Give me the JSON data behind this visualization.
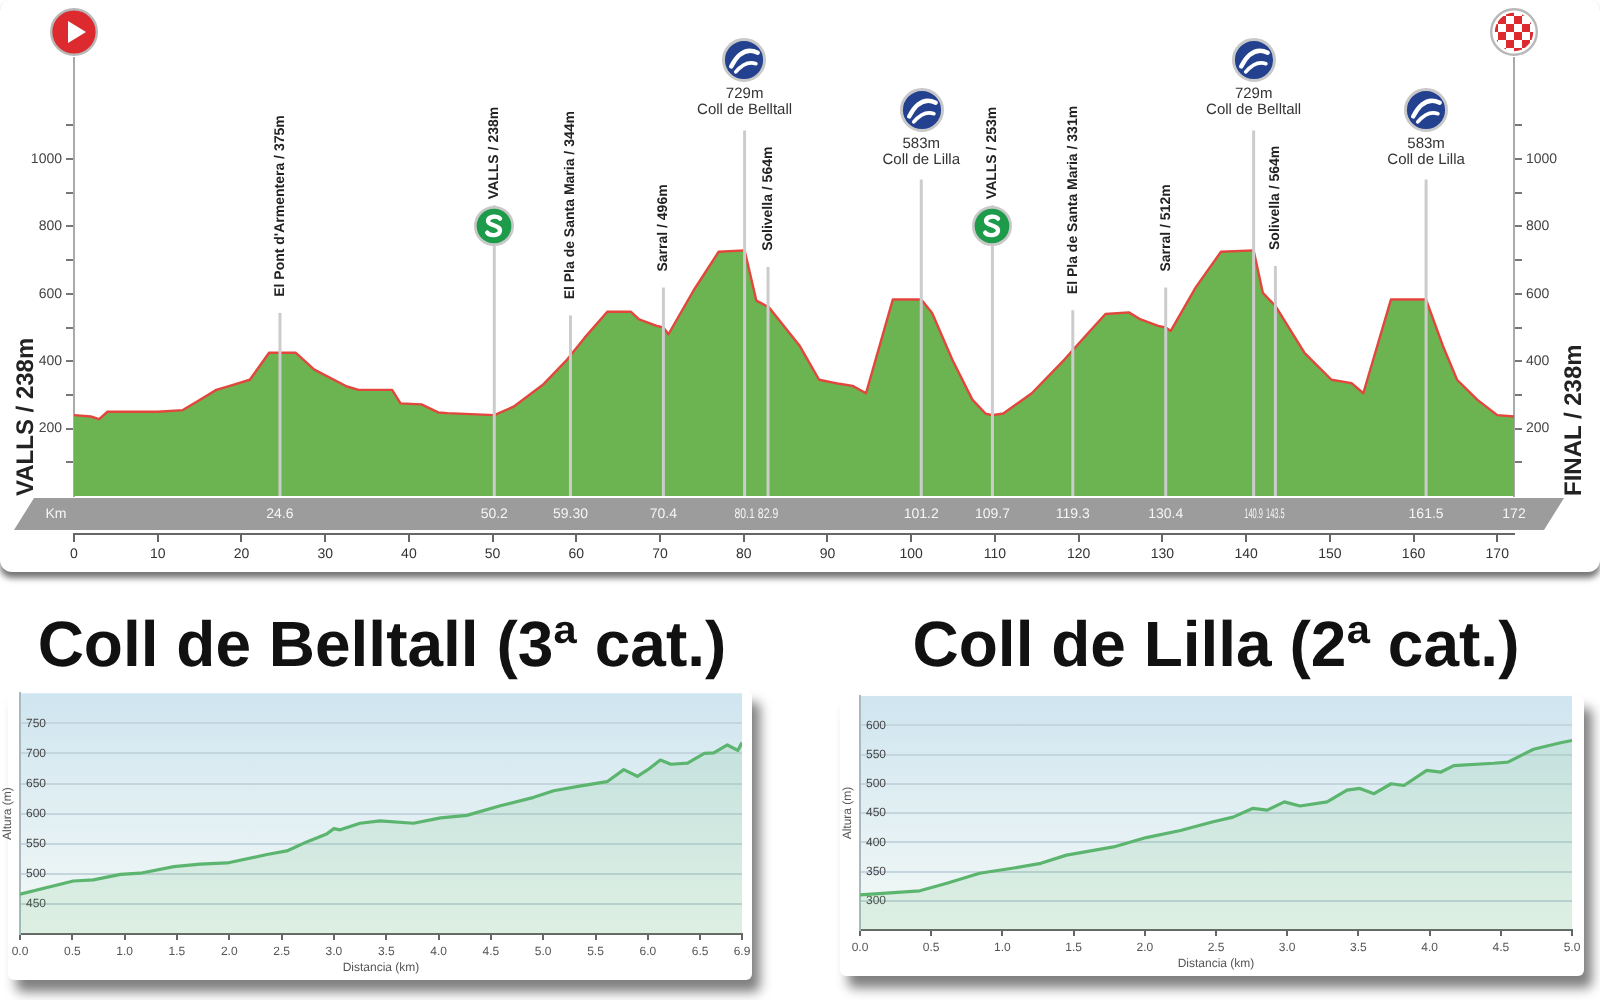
{
  "chart_data": [
    {
      "type": "area",
      "ylabel": "VALLS / 238m",
      "y2label": "FINAL / 238m",
      "x2label": "Km",
      "series": [
        {
          "color": "#6cb452",
          "x": [
            0,
            2,
            3,
            4,
            10,
            13,
            15,
            17,
            19,
            21,
            23.3,
            26.5,
            28.7,
            32.6,
            34,
            38,
            39,
            41.5,
            43.5,
            44.6,
            50.2,
            52.5,
            56,
            58.9,
            61,
            63.7,
            66.5,
            67.5,
            69.6,
            70.4,
            71,
            74,
            77,
            80.1,
            81.5,
            83,
            86.7,
            89,
            91.4,
            93,
            94.6,
            97.8,
            101.2,
            102.5,
            104.9,
            107.3,
            108.9,
            109.7,
            111,
            114.4,
            118.3,
            121,
            123.2,
            126,
            127.4,
            129.5,
            130.4,
            131,
            134,
            137,
            140.9,
            142,
            143.5,
            147,
            150.2,
            152.6,
            154,
            157.3,
            161.5,
            163.5,
            165.2,
            167.6,
            170,
            172
          ],
          "values": [
            240,
            236,
            228,
            250,
            250,
            255,
            285,
            315,
            330,
            345,
            425,
            425,
            375,
            325,
            315,
            315,
            275,
            272,
            248,
            246,
            240,
            265,
            330,
            405,
            470,
            547,
            547,
            524,
            505,
            500,
            480,
            610,
            725,
            729,
            580,
            560,
            445,
            345,
            333,
            327,
            305,
            583,
            583,
            543,
            405,
            286,
            244,
            240,
            245,
            305,
            405,
            480,
            540,
            545,
            524,
            505,
            500,
            490,
            620,
            725,
            729,
            603,
            564,
            424,
            345,
            335,
            305,
            583,
            583,
            446,
            345,
            286,
            240,
            236
          ]
        },
        {
          "type": "line",
          "color": "#e2463d",
          "x": [
            0,
            2,
            3,
            4,
            10,
            13,
            15,
            17,
            19,
            21,
            23.3,
            26.5,
            28.7,
            32.6,
            34,
            38,
            39,
            41.5,
            43.5,
            44.6,
            50.2,
            52.5,
            56,
            58.9,
            61,
            63.7,
            66.5,
            67.5,
            69.6,
            70.4,
            71,
            74,
            77,
            80.1,
            81.5,
            83,
            86.7,
            89,
            91.4,
            93,
            94.6,
            97.8,
            101.2,
            102.5,
            104.9,
            107.3,
            108.9,
            109.7,
            111,
            114.4,
            118.3,
            121,
            123.2,
            126,
            127.4,
            129.5,
            130.4,
            131,
            134,
            137,
            140.9,
            142,
            143.5,
            147,
            150.2,
            152.6,
            154,
            157.3,
            161.5,
            163.5,
            165.2,
            167.6,
            170,
            172
          ],
          "values": [
            240,
            236,
            228,
            250,
            250,
            255,
            285,
            315,
            330,
            345,
            425,
            425,
            375,
            325,
            315,
            315,
            275,
            272,
            248,
            246,
            240,
            265,
            330,
            405,
            470,
            547,
            547,
            524,
            505,
            500,
            480,
            610,
            725,
            729,
            580,
            560,
            445,
            345,
            333,
            327,
            305,
            583,
            583,
            543,
            405,
            286,
            244,
            240,
            245,
            305,
            405,
            480,
            540,
            545,
            524,
            505,
            500,
            490,
            620,
            725,
            729,
            603,
            564,
            424,
            345,
            335,
            305,
            583,
            583,
            446,
            345,
            286,
            240,
            236
          ]
        }
      ],
      "xlim": [
        0,
        172
      ],
      "xticks": [
        0,
        10,
        20,
        30,
        40,
        50,
        60,
        70,
        80,
        90,
        100,
        110,
        120,
        130,
        140,
        150,
        160,
        170
      ],
      "x2lim": [
        0,
        172
      ],
      "x2ticks": [
        24.6,
        50.2,
        {
          "value": 59.3,
          "label": "59.30"
        },
        70.4,
        80.1,
        82.9,
        101.2,
        109.7,
        119.3,
        130.4,
        140.9,
        143.5,
        161.5,
        172
      ],
      "ylim": [
        0,
        1300
      ],
      "yticks": [
        {
          "value": 100,
          "label": null
        },
        200,
        {
          "value": 300,
          "label": null
        },
        400,
        {
          "value": 500,
          "label": null
        },
        600,
        {
          "value": 700,
          "label": null
        },
        800,
        {
          "value": 900,
          "label": null
        },
        1000,
        {
          "value": 1100,
          "label": null
        }
      ],
      "y2lim": [
        0,
        1300
      ],
      "y2ticks": [
        {
          "value": 100,
          "label": null
        },
        200,
        {
          "value": 300,
          "label": null
        },
        400,
        {
          "value": 500,
          "label": null
        },
        600,
        {
          "value": 700,
          "label": null
        },
        800,
        {
          "value": 900,
          "label": null
        },
        1000,
        {
          "value": 1100,
          "label": null
        }
      ],
      "ref_lines": [
        {
          "axis": "x",
          "value": 24.6,
          "label": "El Pont d'Armentera / 375m",
          "color": "#cccccc"
        },
        {
          "axis": "x",
          "value": 50.2,
          "label": "VALLS / 238m",
          "color": "#cccccc"
        },
        {
          "axis": "x",
          "value": 59.3,
          "label": "El Pla de Santa Maria / 344m",
          "color": "#cccccc"
        },
        {
          "axis": "x",
          "value": 70.4,
          "label": "Sarral / 496m",
          "color": "#cccccc"
        },
        {
          "axis": "x",
          "value": 80.1,
          "label": "729m\nColl de Belltall",
          "color": "#cccccc"
        },
        {
          "axis": "x",
          "value": 82.9,
          "label": "Solivella / 564m",
          "color": "#cccccc"
        },
        {
          "axis": "x",
          "value": 101.2,
          "label": "583m\nColl de Lilla",
          "color": "#cccccc"
        },
        {
          "axis": "x",
          "value": 109.7,
          "label": "VALLS / 253m",
          "color": "#cccccc"
        },
        {
          "axis": "x",
          "value": 119.3,
          "label": "El Pla de Santa Maria / 331m",
          "color": "#cccccc"
        },
        {
          "axis": "x",
          "value": 130.4,
          "label": "Sarral / 512m",
          "color": "#cccccc"
        },
        {
          "axis": "x",
          "value": 140.9,
          "label": "729m\nColl de Belltall",
          "color": "#cccccc"
        },
        {
          "axis": "x",
          "value": 143.5,
          "label": "Solivella / 564m",
          "color": "#cccccc"
        },
        {
          "axis": "x",
          "value": 161.5,
          "label": "583m\nColl de Lilla",
          "color": "#cccccc"
        }
      ]
    },
    {
      "type": "area",
      "title": "Coll de Belltall (3ª cat.)",
      "xlabel": "Distancia (km)",
      "ylabel": "Altura (m)",
      "x": [
        0,
        0.51,
        0.7,
        0.96,
        1.15,
        1.47,
        1.72,
        1.98,
        2.36,
        2.55,
        2.74,
        2.93,
        3.0,
        3.06,
        3.25,
        3.44,
        3.76,
        4.02,
        4.27,
        4.59,
        4.91,
        5.1,
        5.36,
        5.61,
        5.77,
        5.9,
        6.0,
        6.12,
        6.22,
        6.38,
        6.54,
        6.63,
        6.76,
        6.86,
        6.9
      ],
      "series": [
        {
          "color": "#5cb56f",
          "values": [
            466,
            488,
            490,
            499,
            501,
            512,
            516,
            518,
            532,
            538,
            553,
            566,
            575,
            573,
            584,
            588,
            584,
            593,
            597,
            613,
            627,
            638,
            646,
            653,
            673,
            662,
            673,
            689,
            682,
            684,
            700,
            701,
            714,
            705,
            718
          ]
        }
      ],
      "xlim": [
        0,
        6.9
      ],
      "xticks": [
        {
          "value": 0,
          "label": "0.0"
        },
        0.5,
        {
          "value": 1,
          "label": "1.0"
        },
        1.5,
        {
          "value": 2,
          "label": "2.0"
        },
        2.5,
        {
          "value": 3,
          "label": "3.0"
        },
        3.5,
        {
          "value": 4,
          "label": "4.0"
        },
        4.5,
        {
          "value": 5,
          "label": "5.0"
        },
        5.5,
        {
          "value": 6,
          "label": "6.0"
        },
        6.5,
        6.9
      ],
      "ylim": [
        400,
        800
      ],
      "yticks": [
        450,
        500,
        550,
        600,
        650,
        700,
        750
      ],
      "grid": "y"
    },
    {
      "type": "area",
      "title": "Coll de Lilla (2ª cat.)",
      "xlabel": "Distancia (km)",
      "ylabel": "Altura (m)",
      "x": [
        0,
        0.42,
        0.61,
        0.84,
        1.08,
        1.27,
        1.45,
        1.59,
        1.78,
        2.01,
        2.25,
        2.48,
        2.62,
        2.76,
        2.86,
        2.98,
        3.09,
        3.28,
        3.42,
        3.51,
        3.61,
        3.73,
        3.82,
        3.98,
        4.08,
        4.17,
        4.45,
        4.55,
        4.73,
        4.92,
        5.0
      ],
      "series": [
        {
          "color": "#5cb56f",
          "values": [
            310,
            317,
            330,
            347,
            356,
            364,
            378,
            384,
            392,
            408,
            420,
            435,
            443,
            458,
            455,
            469,
            462,
            469,
            489,
            492,
            483,
            500,
            497,
            523,
            520,
            531,
            535,
            537,
            559,
            570,
            574
          ]
        }
      ],
      "xlim": [
        0,
        5
      ],
      "xticks": [
        {
          "value": 0,
          "label": "0.0"
        },
        0.5,
        {
          "value": 1,
          "label": "1.0"
        },
        1.5,
        {
          "value": 2,
          "label": "2.0"
        },
        2.5,
        {
          "value": 3,
          "label": "3.0"
        },
        3.5,
        {
          "value": 4,
          "label": "4.0"
        },
        4.5,
        {
          "value": 5,
          "label": "5.0"
        }
      ],
      "ylim": [
        250,
        650
      ],
      "yticks": [
        300,
        350,
        400,
        450,
        500,
        550,
        600
      ],
      "grid": "y"
    }
  ]
}
